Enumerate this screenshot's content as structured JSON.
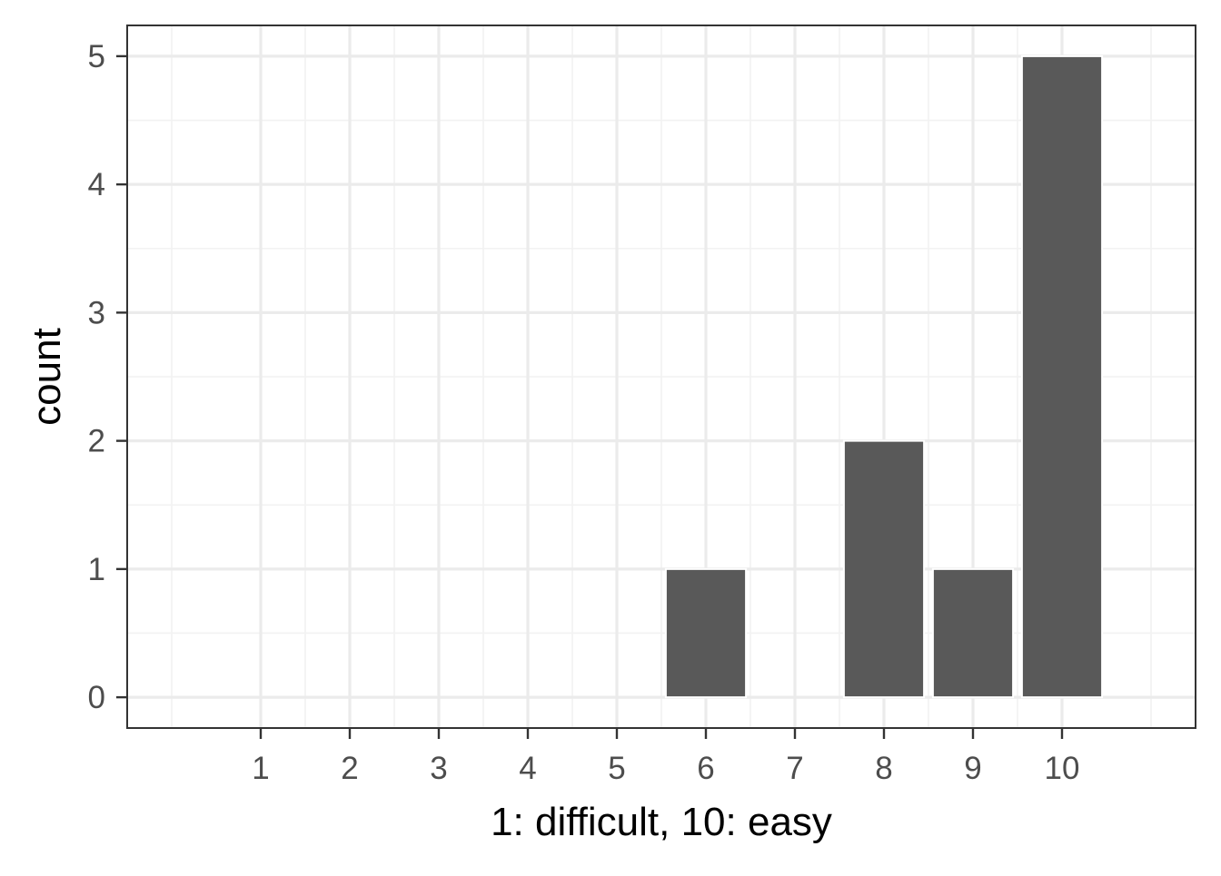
{
  "chart_data": {
    "type": "bar",
    "title": "",
    "xlabel": "1: difficult, 10: easy",
    "ylabel": "count",
    "categories": [
      "1",
      "2",
      "3",
      "4",
      "5",
      "6",
      "7",
      "8",
      "9",
      "10"
    ],
    "x": [
      1,
      2,
      3,
      4,
      5,
      6,
      7,
      8,
      9,
      10
    ],
    "values": [
      0,
      0,
      0,
      0,
      0,
      1,
      0,
      2,
      1,
      5
    ],
    "xlim": [
      -0.5,
      11.5
    ],
    "ylim": [
      -0.24,
      5.24
    ],
    "yticks": [
      "0",
      "1",
      "2",
      "3",
      "4",
      "5"
    ],
    "grid": true,
    "legend": "none"
  },
  "colors": {
    "bar": "#595959",
    "grid_major": "#ebebeb",
    "grid_minor": "#f2f2f2",
    "panel_border": "#333333",
    "tick_text": "#4d4d4d",
    "axis_title": "#000000"
  }
}
